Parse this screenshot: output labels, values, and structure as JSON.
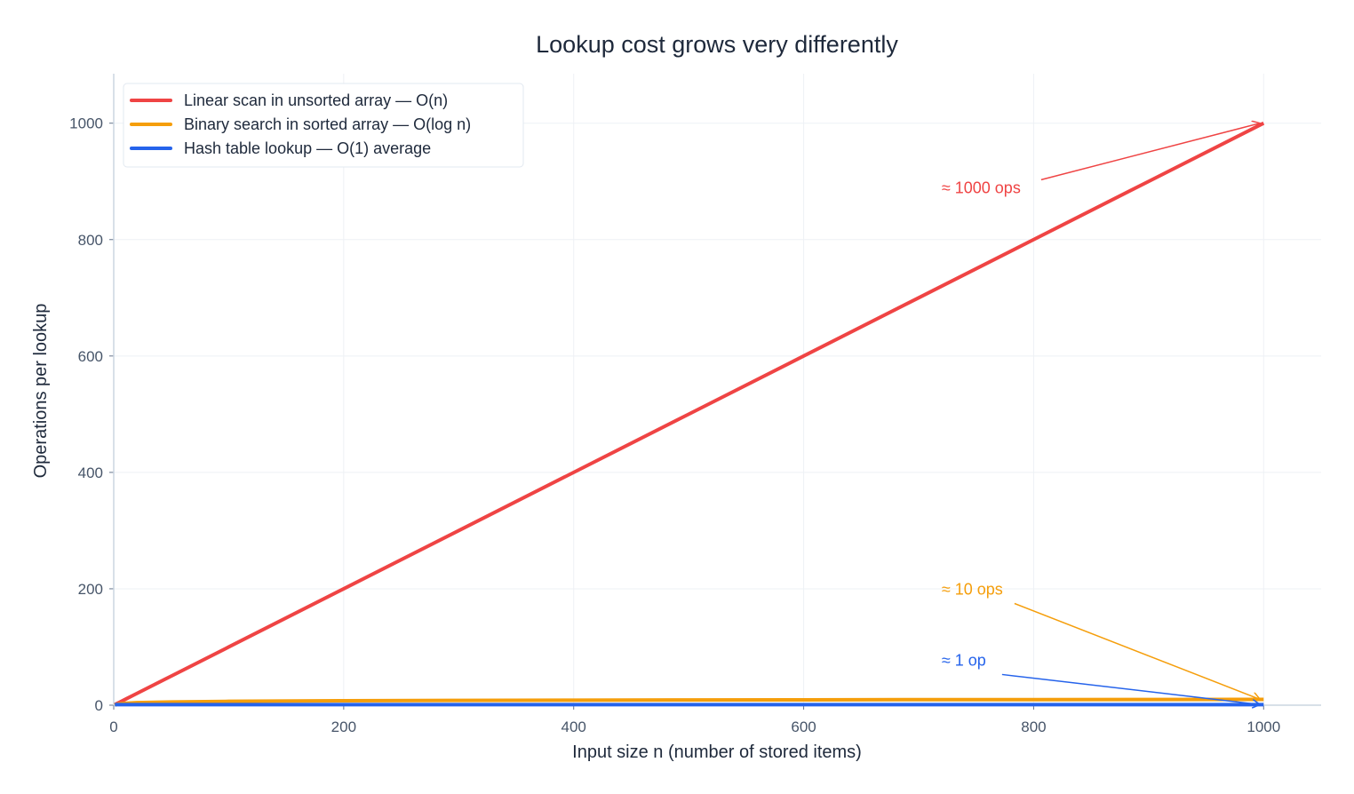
{
  "chart_data": {
    "type": "line",
    "title": "Lookup cost grows very differently",
    "xlabel": "Input size n (number of stored items)",
    "ylabel": "Operations per lookup",
    "xlim": [
      0,
      1050
    ],
    "ylim": [
      0,
      1085
    ],
    "xticks": [
      0,
      200,
      400,
      600,
      800,
      1000
    ],
    "yticks": [
      0,
      200,
      400,
      600,
      800,
      1000
    ],
    "grid": true,
    "legend_position": "top-left",
    "x": [
      1,
      2,
      5,
      10,
      20,
      50,
      100,
      200,
      300,
      400,
      500,
      600,
      700,
      800,
      900,
      1000
    ],
    "series": [
      {
        "name": "Linear scan in unsorted array — O(n)",
        "color": "#ef4444",
        "values": [
          1,
          2,
          5,
          10,
          20,
          50,
          100,
          200,
          300,
          400,
          500,
          600,
          700,
          800,
          900,
          1000
        ]
      },
      {
        "name": "Binary search in sorted array — O(log n)",
        "color": "#f59e0b",
        "values": [
          0,
          1,
          2.3,
          3.3,
          4.3,
          5.6,
          6.6,
          7.6,
          8.2,
          8.6,
          9.0,
          9.2,
          9.5,
          9.6,
          9.8,
          10.0
        ]
      },
      {
        "name": "Hash table lookup — O(1) average",
        "color": "#2563eb",
        "values": [
          1,
          1,
          1,
          1,
          1,
          1,
          1,
          1,
          1,
          1,
          1,
          1,
          1,
          1,
          1,
          1
        ]
      }
    ],
    "annotations": [
      {
        "text": "≈ 1000 ops",
        "color": "#ef4444",
        "text_at": [
          720,
          880
        ],
        "arrow_to": [
          1000,
          1000
        ]
      },
      {
        "text": "≈ 10 ops",
        "color": "#f59e0b",
        "text_at": [
          720,
          190
        ],
        "arrow_to": [
          1000,
          10
        ]
      },
      {
        "text": "≈ 1 op",
        "color": "#2563eb",
        "text_at": [
          720,
          68
        ],
        "arrow_to": [
          1000,
          1
        ]
      }
    ]
  }
}
